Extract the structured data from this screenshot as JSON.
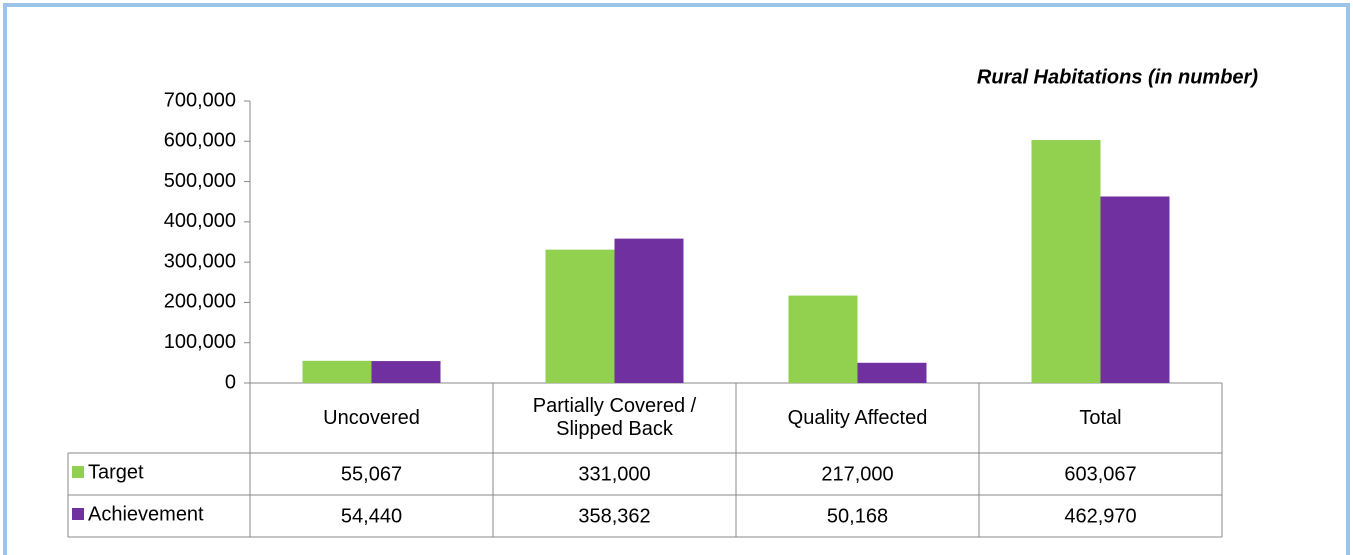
{
  "chart_data": {
    "type": "bar",
    "title": "Rural Habitations (in number)",
    "categories": [
      "Uncovered",
      "Partially Covered / Slipped Back",
      "Quality Affected",
      "Total"
    ],
    "series": [
      {
        "name": "Target",
        "color": "#92d050",
        "values": [
          55067,
          331000,
          217000,
          603067
        ],
        "value_labels": [
          "55,067",
          "331,000",
          "217,000",
          "603,067"
        ]
      },
      {
        "name": "Achievement",
        "color": "#7030a0",
        "values": [
          54440,
          358362,
          50168,
          462970
        ],
        "value_labels": [
          "54,440",
          "358,362",
          "50,168",
          "462,970"
        ]
      }
    ],
    "ylim": [
      0,
      700000
    ],
    "yticks": [
      0,
      {
        "value": 100000,
        "label": "100,000"
      },
      {
        "value": 200000,
        "label": "200,000"
      },
      {
        "value": 300000,
        "label": "300,000"
      },
      {
        "value": 400000,
        "label": "400,000"
      },
      {
        "value": 500000,
        "label": "500,000"
      },
      {
        "value": 600000,
        "label": "600,000"
      },
      {
        "value": 700000,
        "label": "700,000"
      }
    ],
    "grid": false
  }
}
